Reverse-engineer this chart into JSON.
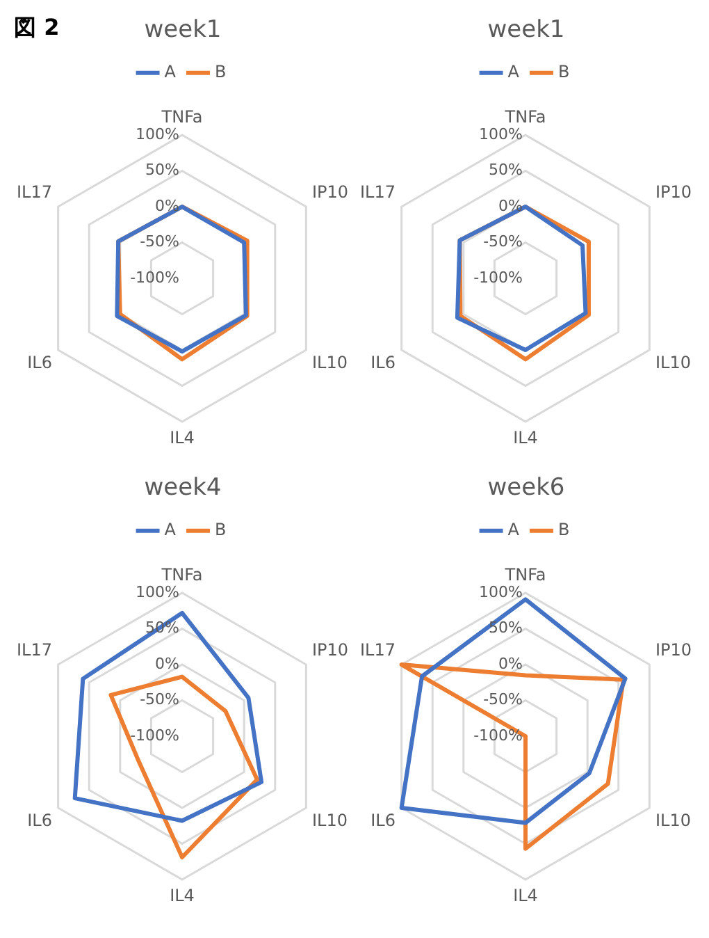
{
  "chart_data": [
    {
      "type": "radar",
      "title": "week1",
      "annotations": [
        "図 2"
      ],
      "categories": [
        "TNFa",
        "IP10",
        "IL10",
        "IL4",
        "IL6",
        "IL17"
      ],
      "ylim": [
        -100,
        100
      ],
      "yticks": [
        {
          "value": -100,
          "label": "-100%"
        },
        {
          "value": -50,
          "label": "-50%"
        },
        {
          "value": 0,
          "label": "0%"
        },
        {
          "value": 50,
          "label": "50%"
        },
        {
          "value": 100,
          "label": "100%"
        }
      ],
      "grid": true,
      "legend": "top",
      "marker": "none",
      "series": [
        {
          "name": "A",
          "color": "#4472c4",
          "values": [
            0,
            0,
            3,
            2,
            5,
            3
          ]
        },
        {
          "name": "B",
          "color": "#ed7d31",
          "values": [
            0,
            5,
            5,
            13,
            0,
            3
          ]
        }
      ]
    },
    {
      "type": "radar",
      "title": "week1",
      "categories": [
        "TNFa",
        "IP10",
        "IL10",
        "IL4",
        "IL6",
        "IL17"
      ],
      "ylim": [
        -100,
        100
      ],
      "yticks": [
        {
          "value": -100,
          "label": "-100%"
        },
        {
          "value": -50,
          "label": "-50%"
        },
        {
          "value": 0,
          "label": "0%"
        },
        {
          "value": 50,
          "label": "50%"
        },
        {
          "value": 100,
          "label": "100%"
        }
      ],
      "grid": true,
      "legend": "top",
      "marker": "none",
      "series": [
        {
          "name": "A",
          "color": "#4472c4",
          "values": [
            0,
            -8,
            -3,
            0,
            10,
            6
          ]
        },
        {
          "name": "B",
          "color": "#ed7d31",
          "values": [
            0,
            2,
            2,
            13,
            5,
            6
          ]
        }
      ]
    },
    {
      "type": "radar",
      "title": "week4",
      "categories": [
        "TNFa",
        "IP10",
        "IL10",
        "IL4",
        "IL6",
        "IL17"
      ],
      "ylim": [
        -100,
        100
      ],
      "yticks": [
        {
          "value": -100,
          "label": "-100%"
        },
        {
          "value": -50,
          "label": "-50%"
        },
        {
          "value": 0,
          "label": "0%"
        },
        {
          "value": 50,
          "label": "50%"
        },
        {
          "value": 100,
          "label": "100%"
        }
      ],
      "grid": true,
      "legend": "top",
      "marker": "none",
      "series": [
        {
          "name": "A",
          "color": "#4472c4",
          "values": [
            72,
            7,
            28,
            18,
            73,
            60
          ]
        },
        {
          "name": "B",
          "color": "#ed7d31",
          "values": [
            -17,
            -30,
            21,
            69,
            -30,
            15
          ]
        }
      ]
    },
    {
      "type": "radar",
      "title": "week6",
      "categories": [
        "TNFa",
        "IP10",
        "IL10",
        "IL4",
        "IL6",
        "IL17"
      ],
      "ylim": [
        -100,
        100
      ],
      "yticks": [
        {
          "value": -100,
          "label": "-100%"
        },
        {
          "value": -50,
          "label": "-50%"
        },
        {
          "value": 0,
          "label": "0%"
        },
        {
          "value": 50,
          "label": "50%"
        },
        {
          "value": 100,
          "label": "100%"
        }
      ],
      "grid": true,
      "legend": "top",
      "marker": "none",
      "series": [
        {
          "name": "A",
          "color": "#4472c4",
          "values": [
            91,
            61,
            3,
            21,
            100,
            67
          ]
        },
        {
          "name": "B",
          "color": "#ed7d31",
          "values": [
            -15,
            58,
            33,
            57,
            -100,
            100
          ]
        }
      ]
    }
  ]
}
